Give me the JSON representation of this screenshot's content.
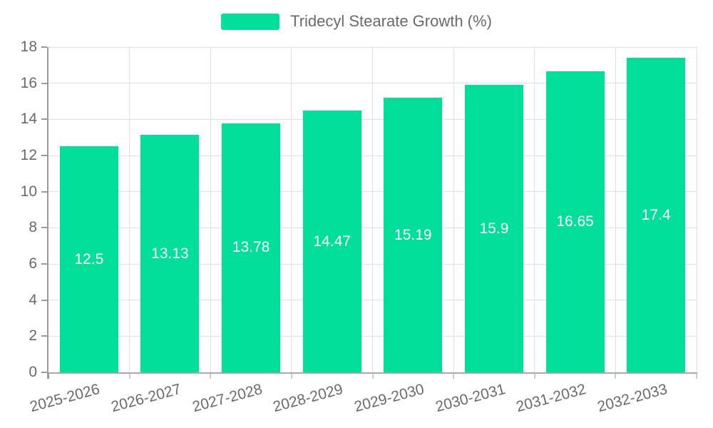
{
  "chart_data": {
    "type": "bar",
    "title": "",
    "series_name": "Tridecyl Stearate Growth (%)",
    "categories": [
      "2025-2026",
      "2026-2027",
      "2027-2028",
      "2028-2029",
      "2029-2030",
      "2030-2031",
      "2031-2032",
      "2032-2033"
    ],
    "values": [
      12.5,
      13.13,
      13.78,
      14.47,
      15.19,
      15.9,
      16.65,
      17.4
    ],
    "value_label_position": "inside-middle",
    "xlabel": "",
    "ylabel": "",
    "ylim": [
      0,
      18
    ],
    "ytick_step": 2,
    "x_tick_label_rotation_deg": -15,
    "grid": true,
    "legend_position": "top",
    "colors": {
      "bar": "#00DE9A",
      "bar_value_label": "#FFFFFF",
      "axis_text": "#6A6A6A",
      "legend_text": "#6A6A6A",
      "grid_line": "#E0E0E0",
      "axis_line": "#9B9B9B",
      "x_tick": "#CCCCCC",
      "background": "#FFFFFF"
    }
  }
}
